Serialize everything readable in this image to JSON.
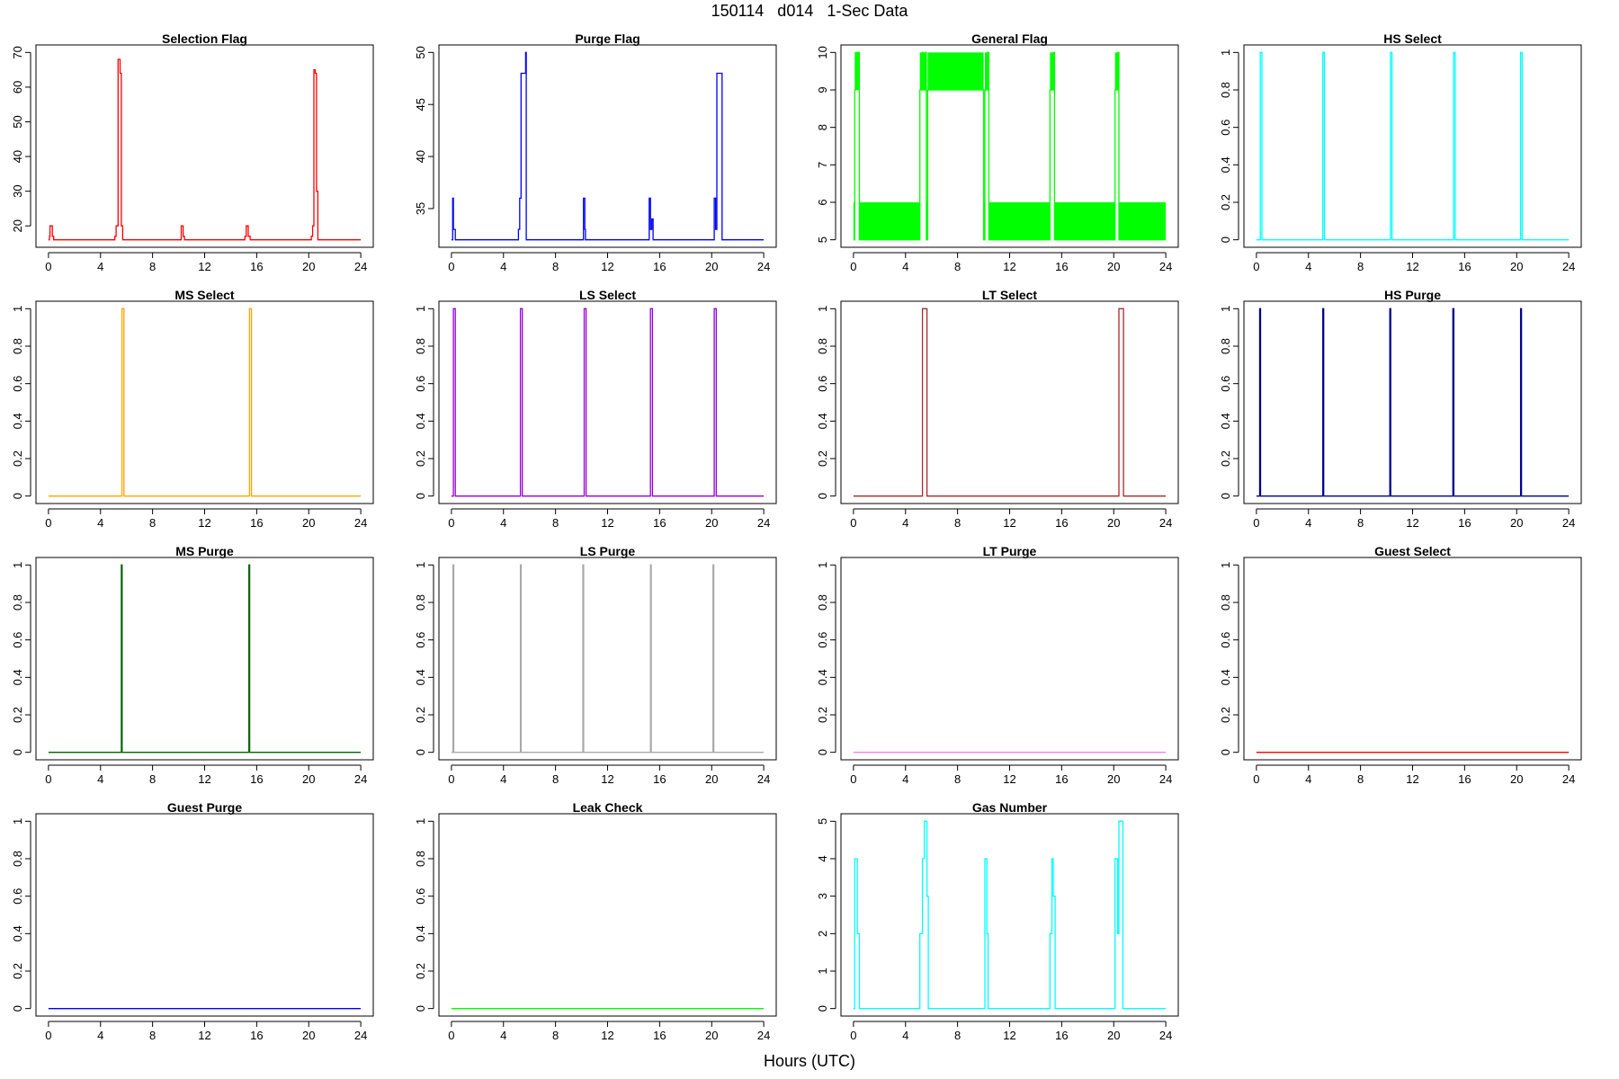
{
  "figure": {
    "title": "150114   d014   1-Sec Data",
    "xlabel": "Hours (UTC)"
  },
  "chart_data": [
    {
      "title": "Selection Flag",
      "type": "line",
      "color": "#ff0000",
      "xlim": [
        0,
        24
      ],
      "ylim": [
        16,
        70
      ],
      "xticks": [
        0,
        4,
        8,
        12,
        16,
        20,
        24
      ],
      "yticks": [
        20,
        30,
        40,
        50,
        60,
        70
      ],
      "x": [
        0,
        0.08,
        0.12,
        0.22,
        0.3,
        0.4,
        0.5,
        5.1,
        5.2,
        5.3,
        5.35,
        5.5,
        5.6,
        5.7,
        10.1,
        10.2,
        10.35,
        10.45,
        15.1,
        15.2,
        15.35,
        15.5,
        20.2,
        20.3,
        20.35,
        20.4,
        20.5,
        20.6,
        20.7,
        24
      ],
      "y": [
        16,
        17,
        20,
        20,
        17,
        16,
        16,
        17,
        20,
        20,
        68,
        64,
        20,
        16,
        16,
        20,
        17,
        16,
        17,
        20,
        17,
        16,
        17,
        20,
        20,
        65,
        64,
        30,
        16,
        16
      ]
    },
    {
      "title": "Purge Flag",
      "type": "line",
      "color": "#0000ff",
      "xlim": [
        0,
        24
      ],
      "ylim": [
        32,
        50
      ],
      "xticks": [
        0,
        4,
        8,
        12,
        16,
        20,
        24
      ],
      "yticks": [
        35,
        40,
        45,
        50
      ],
      "x": [
        0,
        0.1,
        0.15,
        0.2,
        0.3,
        5.0,
        5.15,
        5.25,
        5.35,
        5.55,
        5.7,
        5.75,
        10.1,
        10.15,
        10.25,
        10.3,
        15.1,
        15.2,
        15.3,
        15.4,
        15.5,
        20.1,
        20.2,
        20.3,
        20.4,
        20.75,
        20.8,
        24
      ],
      "y": [
        32,
        36,
        33,
        33,
        32,
        32,
        33,
        36,
        48,
        48,
        50,
        32,
        32,
        36,
        33,
        32,
        32,
        36,
        33,
        34,
        32,
        32,
        36,
        33,
        48,
        48,
        32,
        32
      ]
    },
    {
      "title": "General Flag",
      "type": "band",
      "color": "#00ff00",
      "xlim": [
        0,
        24
      ],
      "ylim": [
        5,
        10
      ],
      "xticks": [
        0,
        4,
        8,
        12,
        16,
        20,
        24
      ],
      "yticks": [
        5,
        6,
        7,
        8,
        9,
        10
      ],
      "band": [
        5,
        6
      ],
      "x": [
        0,
        0.1,
        0.15,
        0.4,
        0.45,
        5.0,
        5.1,
        5.3,
        5.35,
        5.55,
        5.6,
        5.7,
        10.0,
        10.1,
        10.3,
        10.4,
        15.0,
        15.1,
        15.4,
        15.45,
        20.0,
        20.1,
        20.3,
        20.4,
        24
      ],
      "y": [
        5,
        9,
        10,
        10,
        5,
        5,
        9,
        10,
        9,
        10,
        5,
        9,
        5,
        9,
        10,
        5,
        5,
        9,
        10,
        5,
        5,
        9,
        10,
        5,
        5
      ]
    },
    {
      "title": "HS Select",
      "type": "line",
      "color": "#00ffff",
      "xlim": [
        0,
        24
      ],
      "ylim": [
        0,
        1
      ],
      "xticks": [
        0,
        4,
        8,
        12,
        16,
        20,
        24
      ],
      "yticks": [
        0,
        0.2,
        0.4,
        0.6,
        0.8,
        1
      ],
      "pulses": [
        [
          0.3,
          0.42
        ],
        [
          5.1,
          5.22
        ],
        [
          10.3,
          10.42
        ],
        [
          15.15,
          15.27
        ],
        [
          20.3,
          20.42
        ]
      ]
    },
    {
      "title": "MS Select",
      "type": "line",
      "color": "#ffa500",
      "xlim": [
        0,
        24
      ],
      "ylim": [
        0,
        1
      ],
      "xticks": [
        0,
        4,
        8,
        12,
        16,
        20,
        24
      ],
      "yticks": [
        0,
        0.2,
        0.4,
        0.6,
        0.8,
        1
      ],
      "pulses": [
        [
          5.65,
          5.8
        ],
        [
          15.45,
          15.6
        ]
      ]
    },
    {
      "title": "LS Select",
      "type": "line",
      "color": "#9400d3",
      "xlim": [
        0,
        24
      ],
      "ylim": [
        0,
        1
      ],
      "xticks": [
        0,
        4,
        8,
        12,
        16,
        20,
        24
      ],
      "yticks": [
        0,
        0.2,
        0.4,
        0.6,
        0.8,
        1
      ],
      "pulses": [
        [
          0.15,
          0.3
        ],
        [
          5.3,
          5.45
        ],
        [
          10.2,
          10.35
        ],
        [
          15.3,
          15.45
        ],
        [
          20.2,
          20.35
        ]
      ]
    },
    {
      "title": "LT Select",
      "type": "line",
      "color": "#a52a2a",
      "xlim": [
        0,
        24
      ],
      "ylim": [
        0,
        1
      ],
      "xticks": [
        0,
        4,
        8,
        12,
        16,
        20,
        24
      ],
      "yticks": [
        0,
        0.2,
        0.4,
        0.6,
        0.8,
        1
      ],
      "pulses": [
        [
          5.3,
          5.65
        ],
        [
          20.4,
          20.75
        ]
      ]
    },
    {
      "title": "HS Purge",
      "type": "line",
      "color": "#00008b",
      "xlim": [
        0,
        24
      ],
      "ylim": [
        0,
        1
      ],
      "xticks": [
        0,
        4,
        8,
        12,
        16,
        20,
        24
      ],
      "yticks": [
        0,
        0.2,
        0.4,
        0.6,
        0.8,
        1
      ],
      "pulses": [
        [
          0.25,
          0.32
        ],
        [
          5.1,
          5.17
        ],
        [
          10.25,
          10.32
        ],
        [
          15.1,
          15.17
        ],
        [
          20.3,
          20.37
        ]
      ]
    },
    {
      "title": "MS Purge",
      "type": "line",
      "color": "#006400",
      "xlim": [
        0,
        24
      ],
      "ylim": [
        0,
        1
      ],
      "xticks": [
        0,
        4,
        8,
        12,
        16,
        20,
        24
      ],
      "yticks": [
        0,
        0.2,
        0.4,
        0.6,
        0.8,
        1
      ],
      "pulses": [
        [
          5.6,
          5.66
        ],
        [
          15.4,
          15.46
        ]
      ]
    },
    {
      "title": "LS Purge",
      "type": "line",
      "color": "#a9a9a9",
      "xlim": [
        0,
        24
      ],
      "ylim": [
        0,
        1
      ],
      "xticks": [
        0,
        4,
        8,
        12,
        16,
        20,
        24
      ],
      "yticks": [
        0,
        0.2,
        0.4,
        0.6,
        0.8,
        1
      ],
      "pulses": [
        [
          0.12,
          0.18
        ],
        [
          5.3,
          5.36
        ],
        [
          10.1,
          10.16
        ],
        [
          15.3,
          15.36
        ],
        [
          20.1,
          20.16
        ]
      ]
    },
    {
      "title": "LT Purge",
      "type": "line",
      "color": "#ee82ee",
      "xlim": [
        0,
        24
      ],
      "ylim": [
        0,
        1
      ],
      "xticks": [
        0,
        4,
        8,
        12,
        16,
        20,
        24
      ],
      "yticks": [
        0,
        0.2,
        0.4,
        0.6,
        0.8,
        1
      ],
      "pulses": []
    },
    {
      "title": "Guest Select",
      "type": "line",
      "color": "#ff0000",
      "xlim": [
        0,
        24
      ],
      "ylim": [
        0,
        1
      ],
      "xticks": [
        0,
        4,
        8,
        12,
        16,
        20,
        24
      ],
      "yticks": [
        0,
        0.2,
        0.4,
        0.6,
        0.8,
        1
      ],
      "pulses": []
    },
    {
      "title": "Guest Purge",
      "type": "line",
      "color": "#0000ff",
      "xlim": [
        0,
        24
      ],
      "ylim": [
        0,
        1
      ],
      "xticks": [
        0,
        4,
        8,
        12,
        16,
        20,
        24
      ],
      "yticks": [
        0,
        0.2,
        0.4,
        0.6,
        0.8,
        1
      ],
      "pulses": []
    },
    {
      "title": "Leak Check",
      "type": "line",
      "color": "#00ff00",
      "xlim": [
        0,
        24
      ],
      "ylim": [
        0,
        1
      ],
      "xticks": [
        0,
        4,
        8,
        12,
        16,
        20,
        24
      ],
      "yticks": [
        0,
        0.2,
        0.4,
        0.6,
        0.8,
        1
      ],
      "pulses": []
    },
    {
      "title": "Gas Number",
      "type": "line",
      "color": "#00ffff",
      "xlim": [
        0,
        24
      ],
      "ylim": [
        0,
        5
      ],
      "xticks": [
        0,
        4,
        8,
        12,
        16,
        20,
        24
      ],
      "yticks": [
        0,
        1,
        2,
        3,
        4,
        5
      ],
      "x": [
        0,
        0.1,
        0.15,
        0.3,
        0.35,
        0.45,
        5.0,
        5.1,
        5.2,
        5.3,
        5.45,
        5.55,
        5.65,
        5.75,
        10.0,
        10.1,
        10.25,
        10.35,
        15.0,
        15.1,
        15.25,
        15.35,
        15.5,
        20.0,
        20.1,
        20.25,
        20.3,
        20.4,
        20.55,
        20.7,
        24
      ],
      "y": [
        0,
        4,
        4,
        2,
        2,
        0,
        0,
        2,
        2,
        4,
        5,
        5,
        3,
        0,
        0,
        4,
        2,
        0,
        0,
        2,
        4,
        3,
        0,
        0,
        4,
        4,
        2,
        5,
        5,
        0,
        0
      ]
    }
  ]
}
